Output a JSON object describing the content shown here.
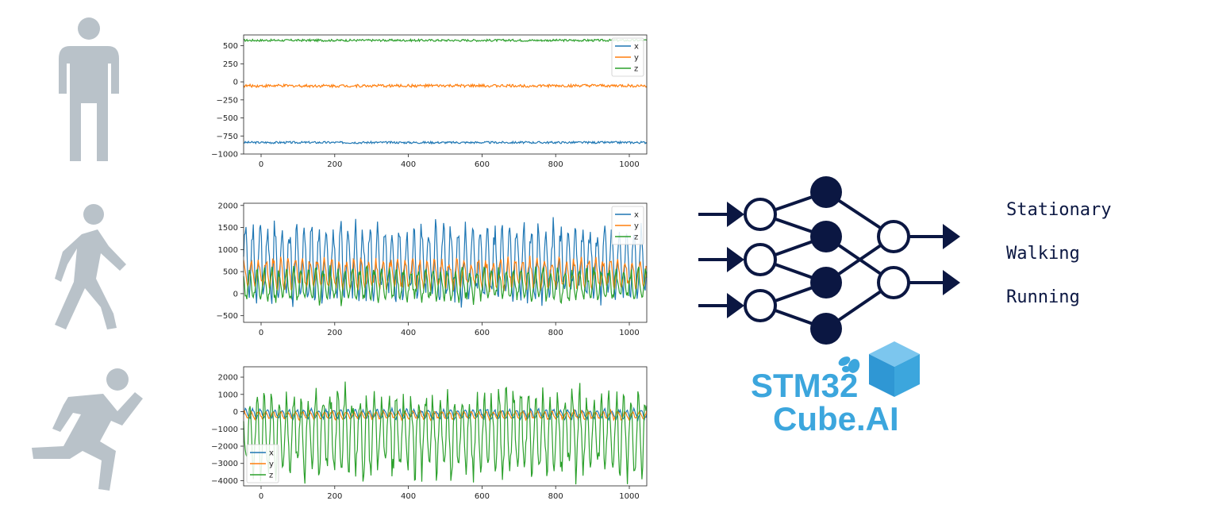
{
  "activities": [
    "Stationary",
    "Walking",
    "Running"
  ],
  "icons": [
    "standing-person-icon",
    "walking-person-icon",
    "running-person-icon"
  ],
  "colors": {
    "icon": "#b9c2c9",
    "navy": "#0b1742",
    "x": "#1f77b4",
    "y": "#ff7f0e",
    "z": "#2ca02c",
    "logo": "#3ca6dd"
  },
  "logo": {
    "line1": "STM32",
    "line2": "Cube.AI"
  },
  "chart_data": [
    {
      "type": "line",
      "legend": [
        "x",
        "y",
        "z"
      ],
      "legend_position": "top-right",
      "xlim": [
        0,
        1000
      ],
      "ylim": [
        -1000,
        650
      ],
      "xticks": [
        0,
        200,
        400,
        600,
        800,
        1000
      ],
      "yticks": [
        -1000,
        -750,
        -500,
        -250,
        0,
        250,
        500
      ],
      "series": [
        {
          "name": "x",
          "mean": -840,
          "amplitude": 15
        },
        {
          "name": "y",
          "mean": -55,
          "amplitude": 20
        },
        {
          "name": "z",
          "mean": 575,
          "amplitude": 15
        }
      ]
    },
    {
      "type": "line",
      "legend": [
        "x",
        "y",
        "z"
      ],
      "legend_position": "top-right",
      "xlim": [
        0,
        1000
      ],
      "ylim": [
        -650,
        2050
      ],
      "xticks": [
        0,
        200,
        400,
        600,
        800,
        1000
      ],
      "yticks": [
        -500,
        0,
        500,
        1000,
        1500,
        2000
      ],
      "series": [
        {
          "name": "x",
          "mean": 700,
          "amplitude": 900
        },
        {
          "name": "y",
          "mean": 450,
          "amplitude": 350
        },
        {
          "name": "z",
          "mean": 200,
          "amplitude": 400
        }
      ]
    },
    {
      "type": "line",
      "legend": [
        "x",
        "y",
        "z"
      ],
      "legend_position": "bottom-left",
      "xlim": [
        0,
        1000
      ],
      "ylim": [
        -4300,
        2600
      ],
      "xticks": [
        0,
        200,
        400,
        600,
        800,
        1000
      ],
      "yticks": [
        -4000,
        -3000,
        -2000,
        -1000,
        0,
        1000,
        2000
      ],
      "series": [
        {
          "name": "x",
          "mean": -150,
          "amplitude": 300
        },
        {
          "name": "y",
          "mean": -200,
          "amplitude": 250
        },
        {
          "name": "z",
          "mean": -1300,
          "amplitude": 2600
        }
      ]
    }
  ]
}
